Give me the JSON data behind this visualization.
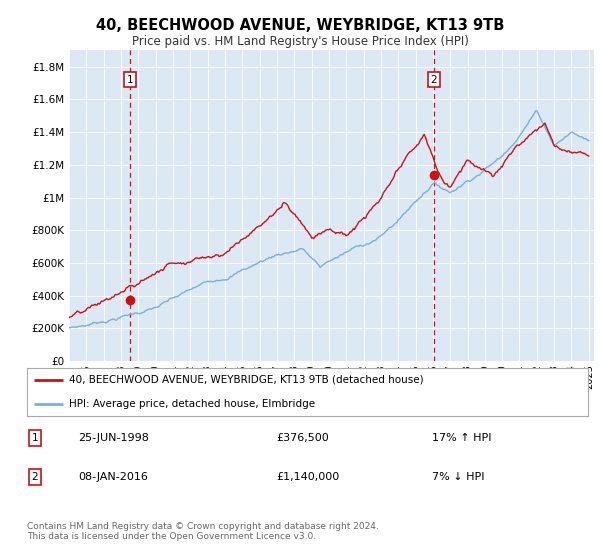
{
  "title": "40, BEECHWOOD AVENUE, WEYBRIDGE, KT13 9TB",
  "subtitle": "Price paid vs. HM Land Registry's House Price Index (HPI)",
  "plot_bg_color": "#dce9f5",
  "hpi_color": "#7ab0d8",
  "price_color": "#cc1111",
  "ylim": [
    0,
    1900000
  ],
  "yticks": [
    0,
    200000,
    400000,
    600000,
    800000,
    1000000,
    1200000,
    1400000,
    1600000,
    1800000
  ],
  "ytick_labels": [
    "£0",
    "£200K",
    "£400K",
    "£600K",
    "£800K",
    "£1M",
    "£1.2M",
    "£1.4M",
    "£1.6M",
    "£1.8M"
  ],
  "sale1_date": "25-JUN-1998",
  "sale1_price": 376500,
  "sale1_price_str": "£376,500",
  "sale1_hpi_pct": "17% ↑ HPI",
  "sale2_date": "08-JAN-2016",
  "sale2_price": 1140000,
  "sale2_price_str": "£1,140,000",
  "sale2_hpi_pct": "7% ↓ HPI",
  "legend_line1": "40, BEECHWOOD AVENUE, WEYBRIDGE, KT13 9TB (detached house)",
  "legend_line2": "HPI: Average price, detached house, Elmbridge",
  "footer": "Contains HM Land Registry data © Crown copyright and database right 2024.\nThis data is licensed under the Open Government Licence v3.0.",
  "annotation1_label": "1",
  "annotation2_label": "2",
  "sale1_x": 1998.5,
  "sale2_x": 2016.05
}
